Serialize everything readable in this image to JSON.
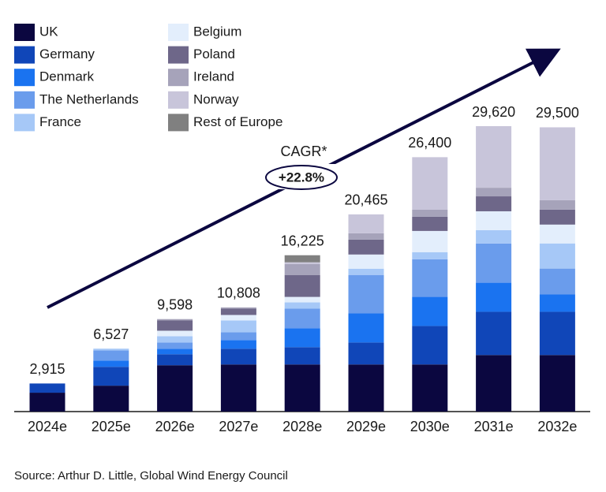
{
  "chart_data": {
    "type": "stacked_bar",
    "categories": [
      "2024e",
      "2025e",
      "2026e",
      "2027e",
      "2028e",
      "2029e",
      "2030e",
      "2031e",
      "2032e"
    ],
    "series": [
      {
        "name": "UK",
        "color": "#0b0740",
        "values": [
          1960,
          2690,
          4810,
          4890,
          4890,
          4890,
          4890,
          5870,
          5870
        ]
      },
      {
        "name": "Germany",
        "color": "#1046b8",
        "values": [
          955,
          1955,
          1140,
          1630,
          1795,
          2280,
          3995,
          4485,
          4485
        ]
      },
      {
        "name": "Denmark",
        "color": "#1a73f0",
        "values": [
          0,
          650,
          570,
          900,
          1955,
          3015,
          3015,
          3015,
          1795
        ]
      },
      {
        "name": "The Netherlands",
        "color": "#6a9cec",
        "values": [
          0,
          1060,
          650,
          815,
          2040,
          3995,
          3910,
          4075,
          2690
        ]
      },
      {
        "name": "France",
        "color": "#a6c8f7",
        "values": [
          0,
          172,
          650,
          1220,
          650,
          650,
          735,
          1385,
          2610
        ]
      },
      {
        "name": "Belgium",
        "color": "#e3eefc",
        "values": [
          0,
          0,
          570,
          570,
          570,
          1470,
          2200,
          1955,
          1955
        ]
      },
      {
        "name": "Poland",
        "color": "#6e6789",
        "values": [
          0,
          0,
          1060,
          650,
          2280,
          1550,
          1470,
          1550,
          1550
        ]
      },
      {
        "name": "Ireland",
        "color": "#a6a3ba",
        "values": [
          0,
          0,
          148,
          133,
          1140,
          650,
          735,
          895,
          980
        ]
      },
      {
        "name": "Norway",
        "color": "#c8c5da",
        "values": [
          0,
          0,
          0,
          0,
          170,
          1965,
          5450,
          6390,
          7565
        ]
      },
      {
        "name": "Rest of Europe",
        "color": "#808080",
        "values": [
          0,
          0,
          0,
          0,
          735,
          0,
          0,
          0,
          0
        ]
      }
    ],
    "totals": [
      2915,
      6527,
      9598,
      10808,
      16225,
      20465,
      26400,
      29620,
      29500
    ],
    "total_labels": [
      "2,915",
      "6,527",
      "9,598",
      "10,808",
      "16,225",
      "20,465",
      "26,400",
      "29,620",
      "29,500"
    ],
    "annotation": {
      "label": "CAGR*",
      "value": "+22.8%"
    },
    "source": "Source: Arthur D. Little, Global Wind Energy Council"
  }
}
